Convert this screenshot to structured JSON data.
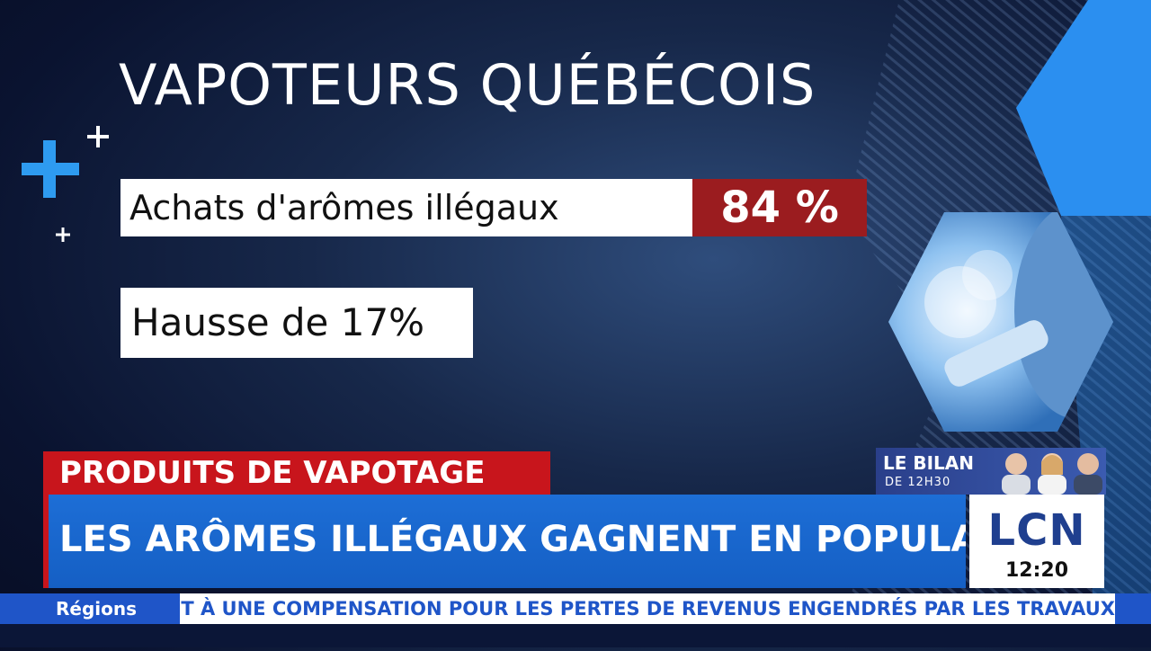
{
  "graphic": {
    "title": "VAPOTEURS QUÉBÉCOIS",
    "stat_label": "Achats d'arômes illégaux",
    "stat_value": "84 %",
    "secondary_stat": "Hausse de 17%"
  },
  "lower_third": {
    "kicker": "PRODUITS DE VAPOTAGE",
    "headline": "LES ARÔMES ILLÉGAUX GAGNENT EN POPULARITÉ"
  },
  "show": {
    "title": "LE BILAN",
    "subtitle": "DE 12H30"
  },
  "channel": {
    "logo": "LCN",
    "time": "12:20"
  },
  "ticker": {
    "label": "Régions",
    "text": "DROIT À UNE COMPENSATION POUR LES PERTES DE REVENUS ENGENDRÉS PAR LES TRAVAUX"
  },
  "colors": {
    "accent_red": "#c8151c",
    "stat_red": "#9b1c1f",
    "accent_blue": "#1d6ed6",
    "logo_blue": "#1f3f8f"
  },
  "icons": [
    "plus-icon",
    "hexagon-decoration",
    "vape-photo",
    "hosts-photo"
  ]
}
